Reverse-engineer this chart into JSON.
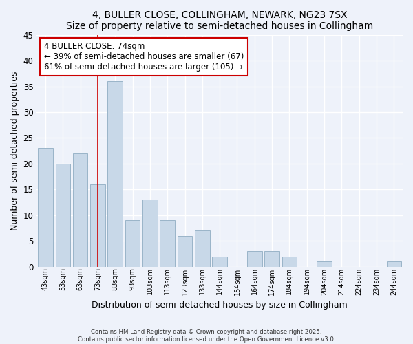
{
  "title": "4, BULLER CLOSE, COLLINGHAM, NEWARK, NG23 7SX",
  "subtitle": "Size of property relative to semi-detached houses in Collingham",
  "xlabel": "Distribution of semi-detached houses by size in Collingham",
  "ylabel": "Number of semi-detached properties",
  "bar_labels": [
    "43sqm",
    "53sqm",
    "63sqm",
    "73sqm",
    "83sqm",
    "93sqm",
    "103sqm",
    "113sqm",
    "123sqm",
    "133sqm",
    "144sqm",
    "154sqm",
    "164sqm",
    "174sqm",
    "184sqm",
    "194sqm",
    "204sqm",
    "214sqm",
    "224sqm",
    "234sqm",
    "244sqm"
  ],
  "bar_values": [
    23,
    20,
    22,
    16,
    36,
    9,
    13,
    9,
    6,
    7,
    2,
    0,
    3,
    3,
    2,
    0,
    1,
    0,
    0,
    0,
    1
  ],
  "bar_color": "#c8d8e8",
  "bar_edge_color": "#9ab4c8",
  "property_bar_index": 3,
  "vline_color": "#cc0000",
  "annotation_box_text": "4 BULLER CLOSE: 74sqm\n← 39% of semi-detached houses are smaller (67)\n61% of semi-detached houses are larger (105) →",
  "annotation_box_edge_color": "#cc0000",
  "annotation_box_face_color": "#ffffff",
  "ylim": [
    0,
    45
  ],
  "yticks": [
    0,
    5,
    10,
    15,
    20,
    25,
    30,
    35,
    40,
    45
  ],
  "bg_color": "#eef2fa",
  "grid_color": "#ffffff",
  "footer_line1": "Contains HM Land Registry data © Crown copyright and database right 2025.",
  "footer_line2": "Contains public sector information licensed under the Open Government Licence v3.0."
}
